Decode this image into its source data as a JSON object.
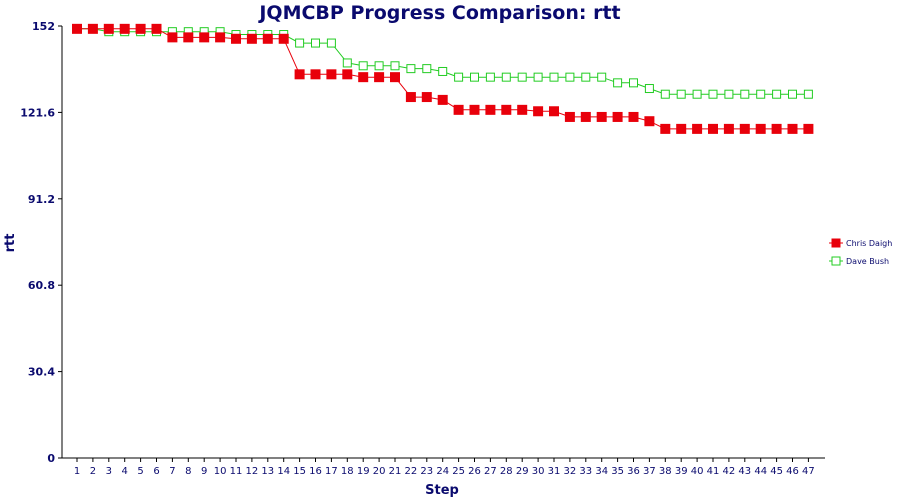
{
  "chart_data": {
    "type": "line",
    "title": "JQMCBP Progress Comparison: rtt",
    "xlabel": "Step",
    "ylabel": "rtt",
    "x": [
      1,
      2,
      3,
      4,
      5,
      6,
      7,
      8,
      9,
      10,
      11,
      12,
      13,
      14,
      15,
      16,
      17,
      18,
      19,
      20,
      21,
      22,
      23,
      24,
      25,
      26,
      27,
      28,
      29,
      30,
      31,
      32,
      33,
      34,
      35,
      36,
      37,
      38,
      39,
      40,
      41,
      42,
      43,
      44,
      45,
      46,
      47
    ],
    "y_ticks": [
      "0",
      "30.4",
      "60.8",
      "91.2",
      "121.6",
      "152"
    ],
    "ylim": [
      0,
      152
    ],
    "grid": false,
    "legend_position": "right",
    "series": [
      {
        "name": "Chris Daigh",
        "color": "#e8000b",
        "marker": "filled-square",
        "values": [
          151,
          151,
          151,
          151,
          151,
          151,
          148,
          148,
          148,
          148,
          147.5,
          147.5,
          147.5,
          147.5,
          135,
          135,
          135,
          135,
          134,
          134,
          134,
          127,
          127,
          126,
          122.5,
          122.5,
          122.5,
          122.5,
          122.5,
          122,
          122,
          120,
          120,
          120,
          120,
          120,
          118.5,
          115.8,
          115.8,
          115.8,
          115.8,
          115.8,
          115.8,
          115.8,
          115.8,
          115.8,
          115.8
        ]
      },
      {
        "name": "Dave Bush",
        "color": "#22cc22",
        "marker": "hollow-square",
        "values": [
          151,
          151,
          150,
          150,
          150,
          150,
          150,
          150,
          150,
          150,
          149,
          149,
          149,
          149,
          146,
          146,
          146,
          139,
          138,
          138,
          138,
          137,
          137,
          136,
          134,
          134,
          134,
          134,
          134,
          134,
          134,
          134,
          134,
          134,
          132,
          132,
          130,
          128,
          128,
          128,
          128,
          128,
          128,
          128,
          128,
          128,
          128
        ]
      }
    ]
  }
}
